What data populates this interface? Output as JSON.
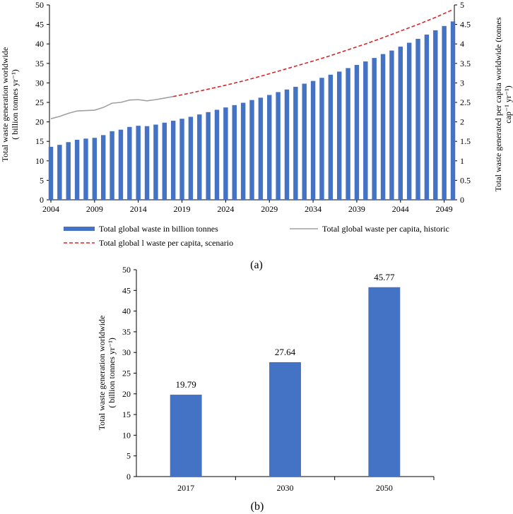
{
  "chart_data": [
    {
      "type": "bar",
      "panel_label": "(a)",
      "x": [
        2004,
        2005,
        2006,
        2007,
        2008,
        2009,
        2010,
        2011,
        2012,
        2013,
        2014,
        2015,
        2016,
        2017,
        2018,
        2019,
        2020,
        2021,
        2022,
        2023,
        2024,
        2025,
        2026,
        2027,
        2028,
        2029,
        2030,
        2031,
        2032,
        2033,
        2034,
        2035,
        2036,
        2037,
        2038,
        2039,
        2040,
        2041,
        2042,
        2043,
        2044,
        2045,
        2046,
        2047,
        2048,
        2049,
        2050
      ],
      "x_ticks": [
        "2004",
        "2009",
        "2014",
        "2019",
        "2024",
        "2029",
        "2034",
        "2039",
        "2044",
        "2049"
      ],
      "y_ticks": [
        "0",
        "5",
        "10",
        "15",
        "20",
        "25",
        "30",
        "35",
        "40",
        "45",
        "50"
      ],
      "y2_ticks": [
        "0",
        "0.5",
        "1",
        "1.5",
        "2",
        "2.5",
        "3",
        "3.5",
        "4",
        "4.5",
        "5"
      ],
      "ylim": [
        0,
        50
      ],
      "y2lim": [
        0,
        5
      ],
      "ylabel": [
        "Total waste generation worldwide",
        "( billion tonnes yr⁻¹)"
      ],
      "y2label": [
        "Total waste  generated per capita worldwide (tonnes",
        "cap⁻¹ yr⁻¹)"
      ],
      "series": [
        {
          "name": "Total global waste in billion tonnes",
          "kind": "bar",
          "axis": "left",
          "color": "#4472c4",
          "values": [
            13.6,
            14.1,
            14.8,
            15.4,
            15.7,
            15.9,
            16.6,
            17.6,
            18.0,
            18.7,
            19.0,
            18.9,
            19.3,
            19.79,
            20.3,
            20.8,
            21.3,
            21.9,
            22.5,
            23.1,
            23.7,
            24.3,
            24.9,
            25.6,
            26.2,
            26.9,
            27.64,
            28.3,
            29.0,
            29.8,
            30.5,
            31.3,
            32.1,
            32.9,
            33.8,
            34.6,
            35.5,
            36.4,
            37.4,
            38.3,
            39.3,
            40.3,
            41.3,
            42.4,
            43.5,
            44.6,
            45.77
          ]
        },
        {
          "name": "Total global waste per capita, historic",
          "kind": "line",
          "axis": "right",
          "color": "#a0a0a0",
          "x": [
            2004,
            2005,
            2006,
            2007,
            2008,
            2009,
            2010,
            2011,
            2012,
            2013,
            2014,
            2015,
            2016,
            2017,
            2018
          ],
          "values": [
            2.08,
            2.14,
            2.22,
            2.28,
            2.29,
            2.3,
            2.37,
            2.48,
            2.5,
            2.56,
            2.57,
            2.54,
            2.57,
            2.61,
            2.65
          ]
        },
        {
          "name": "Total global l waste per capita, scenario",
          "kind": "dashed-line",
          "axis": "right",
          "color": "#d62728",
          "x": [
            2018,
            2020,
            2022,
            2024,
            2026,
            2028,
            2030,
            2032,
            2034,
            2036,
            2038,
            2040,
            2042,
            2044,
            2046,
            2048,
            2050
          ],
          "values": [
            2.65,
            2.74,
            2.84,
            2.94,
            3.05,
            3.17,
            3.3,
            3.43,
            3.56,
            3.7,
            3.85,
            4.0,
            4.16,
            4.33,
            4.5,
            4.68,
            4.88
          ]
        }
      ]
    },
    {
      "type": "bar",
      "panel_label": "(b)",
      "categories": [
        "2017",
        "2030",
        "2050"
      ],
      "values": [
        19.79,
        27.64,
        45.77
      ],
      "data_labels": [
        "19.79",
        "27.64",
        "45.77"
      ],
      "y_ticks": [
        "0",
        "5",
        "10",
        "15",
        "20",
        "25",
        "30",
        "35",
        "40",
        "45",
        "50"
      ],
      "ylim": [
        0,
        50
      ],
      "ylabel": [
        "Total waste generation worldwide",
        "( billion tonnes yr⁻¹)"
      ],
      "color": "#4472c4"
    }
  ]
}
